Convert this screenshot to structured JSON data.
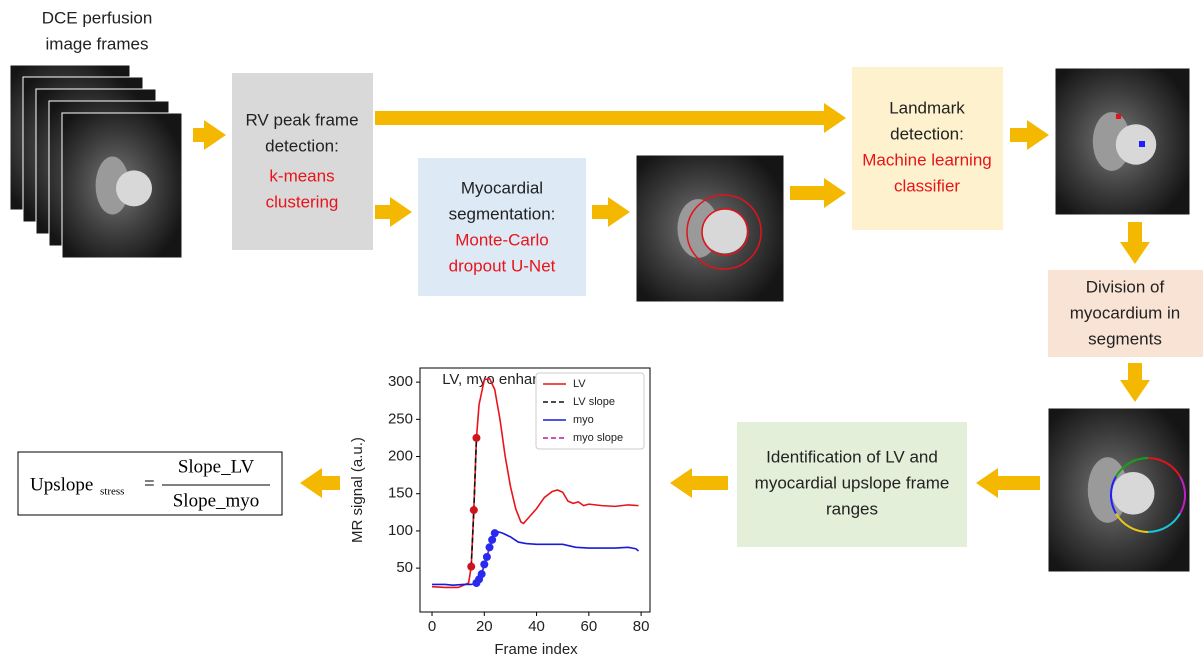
{
  "input": {
    "label_lines": [
      "DCE perfusion",
      "image frames"
    ]
  },
  "nodes": [
    {
      "title_lines": [
        "RV peak frame",
        "detection:"
      ],
      "method_lines": [
        "k-means",
        "clustering"
      ]
    },
    {
      "title_lines": [
        "Myocardial",
        "segmentation:"
      ],
      "method_lines": [
        "Monte-Carlo",
        "dropout U-Net"
      ]
    },
    {
      "title_lines": [
        "Landmark",
        "detection:"
      ],
      "method_lines": [
        "Machine learning",
        "classifier"
      ]
    },
    {
      "title_lines": [
        "Division of",
        "myocardium in",
        "segments"
      ],
      "method_lines": []
    },
    {
      "title_lines": [
        "Identification of LV and",
        "myocardial upslope frame",
        "ranges"
      ],
      "method_lines": []
    }
  ],
  "formula": {
    "lhs": "Upslope",
    "subscript": "stress",
    "equals": "=",
    "numerator": "Slope_LV",
    "denominator": "Slope_myo"
  },
  "chart_data": {
    "type": "line",
    "title": "LV, myo enhancement",
    "x_label": "Frame index",
    "y_label": "MR signal (a.u.)",
    "xlim": [
      -4.6,
      83.4
    ],
    "ylim": [
      -9,
      319
    ],
    "xticks": [
      0,
      20,
      40,
      60,
      80
    ],
    "yticks": [
      50,
      100,
      150,
      200,
      250,
      300
    ],
    "grid": false,
    "legend": "upper right",
    "series": [
      {
        "name": "LV",
        "color": "#e8141c",
        "dash": false,
        "x": [
          0,
          5,
          10,
          12,
          14,
          15,
          16,
          17,
          18,
          20,
          22,
          24,
          26,
          28,
          30,
          32,
          34,
          35,
          37,
          40,
          43,
          46,
          48,
          50,
          52,
          54,
          56,
          58,
          60,
          65,
          70,
          75,
          79
        ],
        "values": [
          25,
          24,
          24,
          27,
          30,
          52,
          130,
          225,
          270,
          303,
          305,
          290,
          250,
          200,
          160,
          130,
          112,
          110,
          118,
          130,
          145,
          153,
          155,
          152,
          140,
          137,
          139,
          134,
          136,
          134,
          133,
          135,
          134
        ]
      },
      {
        "name": "LV slope",
        "color": "#111111",
        "dash": true,
        "marker_color": "#d0141c",
        "x": [
          15,
          16,
          17
        ],
        "values": [
          52,
          128,
          225
        ]
      },
      {
        "name": "myo",
        "color": "#1a1adc",
        "dash": false,
        "x": [
          0,
          5,
          8,
          12,
          15,
          17,
          18,
          19,
          20,
          21,
          22,
          23,
          24,
          25,
          27,
          30,
          33,
          36,
          40,
          45,
          50,
          55,
          60,
          65,
          70,
          75,
          78,
          79
        ],
        "values": [
          28,
          28,
          27,
          28,
          28,
          30,
          35,
          42,
          55,
          65,
          78,
          88,
          97,
          99,
          97,
          92,
          85,
          83,
          82,
          82,
          82,
          78,
          77,
          77,
          77,
          78,
          76,
          73
        ]
      },
      {
        "name": "myo slope",
        "color": "#c0189c",
        "dash": true,
        "marker_color": "#2a2aee",
        "x": [
          17,
          18,
          19,
          20,
          21,
          22,
          23,
          24
        ],
        "values": [
          30,
          35,
          42,
          55,
          65,
          78,
          88,
          97
        ]
      }
    ]
  }
}
